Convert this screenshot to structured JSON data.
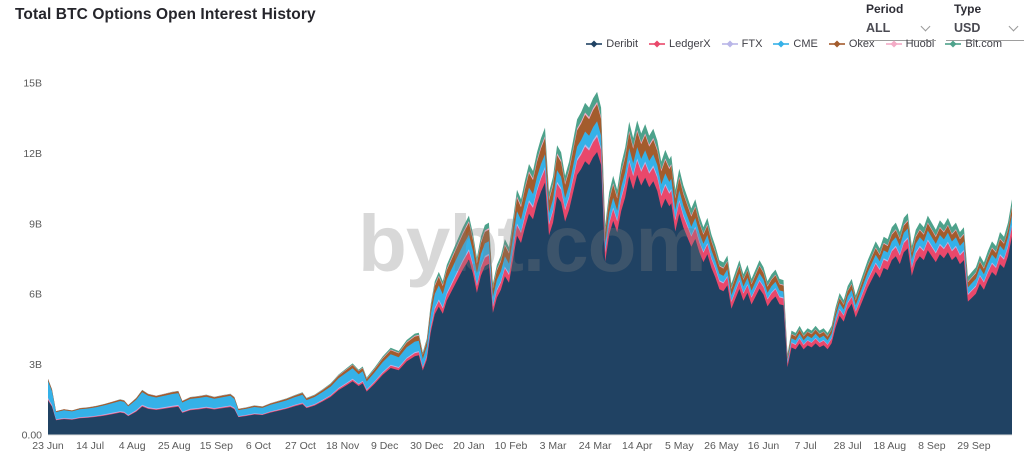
{
  "header": {
    "title": "Total BTC Options Open Interest History",
    "controls": {
      "period": {
        "label": "Period",
        "value": "ALL"
      },
      "type": {
        "label": "Type",
        "value": "USD"
      }
    }
  },
  "watermark": "bybt.com",
  "chart_data": {
    "type": "area",
    "stacked": true,
    "title": "Total BTC Options Open Interest History",
    "unit": "USD billions",
    "grid": false,
    "legend_position": "top-right",
    "x_axis": {
      "x_day_zero_label": "23 Jun",
      "tick_days": [
        0,
        21,
        42,
        63,
        84,
        105,
        126,
        147,
        168,
        189,
        210,
        231,
        252,
        273,
        294,
        315,
        336,
        357,
        378,
        399,
        420,
        441,
        462
      ],
      "tick_labels": [
        "23 Jun",
        "14 Jul",
        "4 Aug",
        "25 Aug",
        "15 Sep",
        "6 Oct",
        "27 Oct",
        "18 Nov",
        "9 Dec",
        "30 Dec",
        "20 Jan",
        "10 Feb",
        "3 Mar",
        "24 Mar",
        "14 Apr",
        "5 May",
        "26 May",
        "16 Jun",
        "7 Jul",
        "28 Jul",
        "18 Aug",
        "8 Sep",
        "29 Sep"
      ]
    },
    "y_axis": {
      "range": [
        0,
        15
      ],
      "tick_values": [
        0,
        3,
        6,
        9,
        12,
        15
      ],
      "tick_labels": [
        "0.00",
        "3B",
        "6B",
        "9B",
        "12B",
        "15B"
      ]
    },
    "x_days": [
      0,
      2,
      4,
      8,
      12,
      16,
      20,
      24,
      28,
      32,
      36,
      38,
      40,
      44,
      47,
      50,
      54,
      58,
      62,
      65,
      67,
      71,
      75,
      79,
      83,
      87,
      91,
      93,
      95,
      99,
      103,
      107,
      111,
      115,
      119,
      123,
      127,
      129,
      133,
      137,
      141,
      145,
      149,
      152,
      155,
      157,
      159,
      163,
      167,
      171,
      175,
      179,
      183,
      185,
      187,
      189,
      191,
      193,
      195,
      197,
      199,
      203,
      207,
      210,
      212,
      214,
      216,
      218,
      220,
      222,
      224,
      226,
      228,
      230,
      232,
      234,
      236,
      238,
      240,
      242,
      244,
      246,
      248,
      250,
      252,
      254,
      256,
      258,
      260,
      262,
      264,
      266,
      268,
      270,
      272,
      274,
      276,
      278,
      280,
      282,
      284,
      286,
      288,
      290,
      292,
      294,
      296,
      298,
      300,
      302,
      304,
      306,
      308,
      310,
      311,
      313,
      315,
      317,
      319,
      321,
      323,
      325,
      327,
      329,
      331,
      333,
      335,
      337,
      339,
      341,
      343,
      345,
      347,
      349,
      351,
      353,
      355,
      357,
      359,
      361,
      363,
      365,
      367,
      369,
      371,
      373,
      375,
      377,
      379,
      381,
      383,
      385,
      387,
      389,
      391,
      393,
      395,
      397,
      399,
      401,
      403,
      405,
      407,
      409,
      411,
      413,
      415,
      417,
      419,
      421,
      423,
      425,
      427,
      429,
      431,
      433,
      435,
      437,
      439,
      441,
      443,
      445,
      447,
      449,
      451,
      453,
      455,
      457,
      459,
      461,
      463,
      465,
      467,
      469,
      471,
      473,
      475,
      477,
      479,
      481
    ],
    "total_oi_billusd": [
      2.4,
      1.95,
      1.02,
      1.1,
      1.05,
      1.15,
      1.18,
      1.24,
      1.32,
      1.42,
      1.52,
      1.48,
      1.28,
      1.58,
      1.92,
      1.76,
      1.68,
      1.76,
      1.84,
      1.88,
      1.46,
      1.62,
      1.66,
      1.72,
      1.63,
      1.7,
      1.76,
      1.62,
      1.12,
      1.18,
      1.26,
      1.22,
      1.36,
      1.46,
      1.56,
      1.7,
      1.82,
      1.58,
      1.72,
      1.95,
      2.2,
      2.58,
      2.85,
      3.05,
      2.78,
      2.92,
      2.45,
      2.88,
      3.35,
      3.72,
      3.58,
      4.05,
      4.32,
      4.36,
      3.52,
      4.1,
      5.6,
      6.55,
      6.95,
      6.55,
      7.25,
      8.05,
      8.85,
      9.35,
      8.6,
      7.55,
      8.45,
      8.95,
      9.05,
      6.45,
      7.25,
      7.65,
      8.35,
      8.0,
      9.2,
      10.45,
      10.05,
      10.85,
      11.55,
      11.25,
      12.05,
      12.65,
      13.1,
      10.35,
      11.0,
      12.35,
      12.05,
      11.05,
      11.65,
      12.55,
      13.45,
      13.75,
      14.15,
      13.95,
      14.35,
      14.62,
      13.95,
      8.95,
      10.35,
      11.05,
      10.45,
      11.55,
      12.25,
      13.35,
      12.65,
      13.4,
      12.85,
      13.25,
      12.75,
      13.05,
      12.55,
      11.65,
      12.15,
      11.75,
      11.9,
      10.45,
      11.35,
      10.65,
      10.15,
      9.65,
      10.05,
      9.35,
      8.85,
      9.25,
      8.55,
      8.05,
      7.45,
      7.35,
      7.65,
      6.45,
      6.95,
      7.45,
      6.85,
      7.25,
      6.65,
      7.05,
      7.45,
      7.15,
      6.55,
      6.85,
      7.05,
      6.65,
      6.6,
      3.45,
      4.45,
      4.35,
      4.65,
      4.35,
      4.55,
      4.45,
      4.65,
      4.45,
      4.55,
      4.35,
      4.65,
      5.45,
      6.05,
      5.75,
      6.35,
      6.65,
      5.95,
      6.45,
      6.95,
      7.45,
      7.85,
      8.25,
      7.95,
      8.45,
      8.35,
      8.85,
      9.05,
      8.65,
      9.25,
      9.45,
      8.05,
      8.75,
      9.05,
      8.85,
      9.35,
      9.05,
      8.75,
      9.15,
      8.95,
      9.25,
      8.85,
      9.05,
      8.65,
      8.85,
      6.75,
      6.95,
      7.15,
      7.65,
      7.35,
      7.85,
      8.25,
      8.05,
      8.65,
      8.45,
      9.05,
      10.05
    ],
    "series": [
      {
        "name": "Deribit",
        "color": "#204263",
        "share_of_total_keyframes": [
          [
            0,
            0.615
          ],
          [
            60,
            0.635
          ],
          [
            120,
            0.715
          ],
          [
            168,
            0.765
          ],
          [
            210,
            0.8
          ],
          [
            250,
            0.822
          ],
          [
            300,
            0.828
          ],
          [
            350,
            0.836
          ],
          [
            410,
            0.842
          ],
          [
            481,
            0.842
          ]
        ]
      },
      {
        "name": "LedgerX",
        "color": "#e9486b",
        "share_of_total_keyframes": [
          [
            0,
            0.018
          ],
          [
            60,
            0.018
          ],
          [
            120,
            0.02
          ],
          [
            168,
            0.025
          ],
          [
            210,
            0.038
          ],
          [
            250,
            0.044
          ],
          [
            300,
            0.045
          ],
          [
            350,
            0.044
          ],
          [
            410,
            0.042
          ],
          [
            481,
            0.042
          ]
        ]
      },
      {
        "name": "FTX",
        "color": "#b9b6e8",
        "share_of_total_keyframes": [
          [
            0,
            0.025
          ],
          [
            60,
            0.022
          ],
          [
            120,
            0.016
          ],
          [
            168,
            0.012
          ],
          [
            210,
            0.009
          ],
          [
            250,
            0.007
          ],
          [
            300,
            0.007
          ],
          [
            350,
            0.007
          ],
          [
            410,
            0.007
          ],
          [
            481,
            0.007
          ]
        ]
      },
      {
        "name": "CME",
        "color": "#35b1e8",
        "share_of_total_keyframes": [
          [
            0,
            0.3
          ],
          [
            60,
            0.275
          ],
          [
            120,
            0.195
          ],
          [
            168,
            0.125
          ],
          [
            210,
            0.065
          ],
          [
            250,
            0.04
          ],
          [
            300,
            0.036
          ],
          [
            350,
            0.038
          ],
          [
            410,
            0.04
          ],
          [
            481,
            0.041
          ]
        ]
      },
      {
        "name": "Okex",
        "color": "#a35c2d",
        "share_of_total_keyframes": [
          [
            0,
            0.037
          ],
          [
            60,
            0.04
          ],
          [
            120,
            0.04
          ],
          [
            168,
            0.045
          ],
          [
            210,
            0.055
          ],
          [
            250,
            0.052
          ],
          [
            300,
            0.048
          ],
          [
            350,
            0.04
          ],
          [
            410,
            0.033
          ],
          [
            481,
            0.032
          ]
        ]
      },
      {
        "name": "Huobi",
        "color": "#f3abc6",
        "share_of_total_keyframes": [
          [
            0,
            0.0
          ],
          [
            60,
            0.005
          ],
          [
            120,
            0.006
          ],
          [
            168,
            0.008
          ],
          [
            210,
            0.008
          ],
          [
            250,
            0.007
          ],
          [
            300,
            0.006
          ],
          [
            350,
            0.005
          ],
          [
            410,
            0.005
          ],
          [
            481,
            0.005
          ]
        ]
      },
      {
        "name": "Bit.com",
        "color": "#4da28b",
        "share_of_total_keyframes": [
          [
            0,
            0.005
          ],
          [
            60,
            0.005
          ],
          [
            120,
            0.008
          ],
          [
            168,
            0.02
          ],
          [
            210,
            0.025
          ],
          [
            250,
            0.028
          ],
          [
            300,
            0.03
          ],
          [
            350,
            0.03
          ],
          [
            410,
            0.031
          ],
          [
            481,
            0.031
          ]
        ]
      }
    ]
  }
}
